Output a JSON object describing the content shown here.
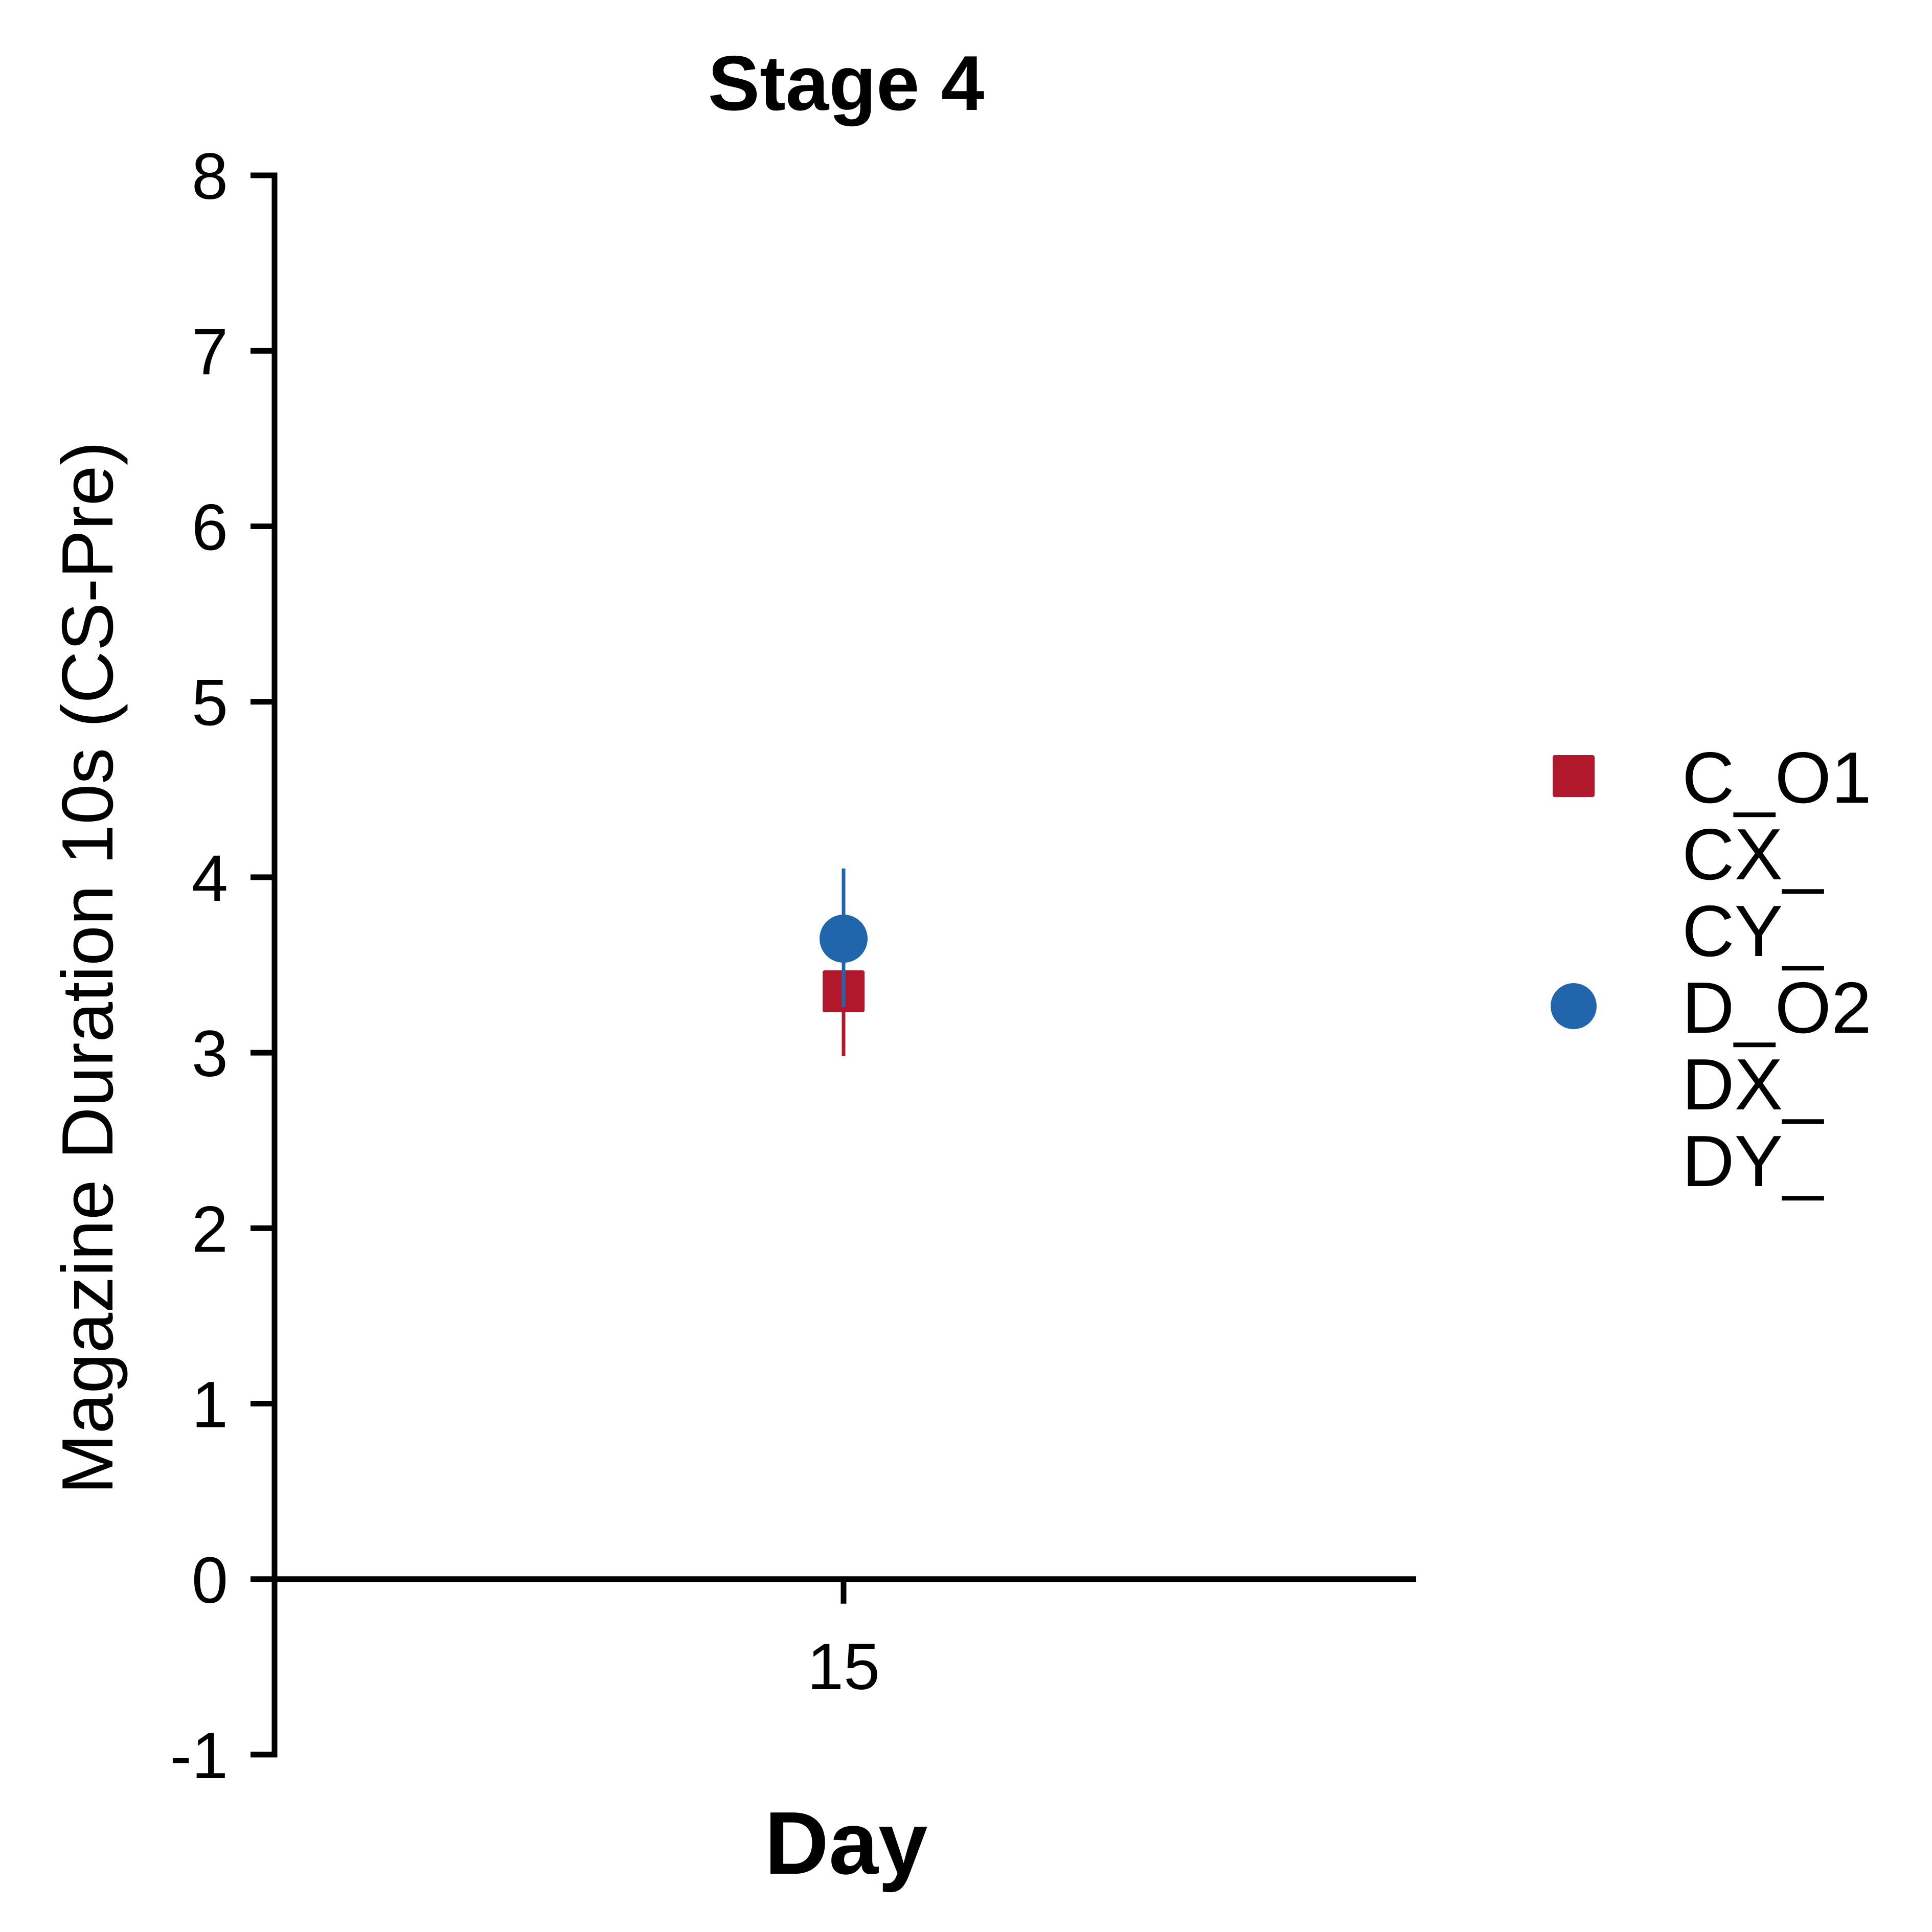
{
  "chart_data": {
    "type": "scatter",
    "title": "Stage 4",
    "xlabel": "Day",
    "ylabel": "Magazine Duration 10s (CS-Pre)",
    "categories": [
      "15"
    ],
    "ylim": [
      -1,
      8
    ],
    "yticks": [
      "-1",
      "0",
      "1",
      "2",
      "3",
      "4",
      "5",
      "6",
      "7",
      "8"
    ],
    "reference_line_y": 0,
    "grid": false,
    "legend_position": "right",
    "series": [
      {
        "name": "C_O1",
        "marker": "square",
        "color": "#B2182B",
        "values": [
          3.35
        ],
        "error_low": [
          2.98
        ],
        "error_high": [
          3.72
        ]
      },
      {
        "name": "D_O2",
        "marker": "circle",
        "color": "#2166AC",
        "values": [
          3.65
        ],
        "error_low": [
          3.26
        ],
        "error_high": [
          4.05
        ]
      }
    ],
    "legend_entries": [
      {
        "label": "C_O1",
        "marker": "square",
        "color": "#B2182B"
      },
      {
        "label": "CX_",
        "marker": "none",
        "color": ""
      },
      {
        "label": "CY_",
        "marker": "none",
        "color": ""
      },
      {
        "label": "D_O2",
        "marker": "circle",
        "color": "#2166AC"
      },
      {
        "label": "DX_",
        "marker": "none",
        "color": ""
      },
      {
        "label": "DY_",
        "marker": "none",
        "color": ""
      }
    ]
  }
}
